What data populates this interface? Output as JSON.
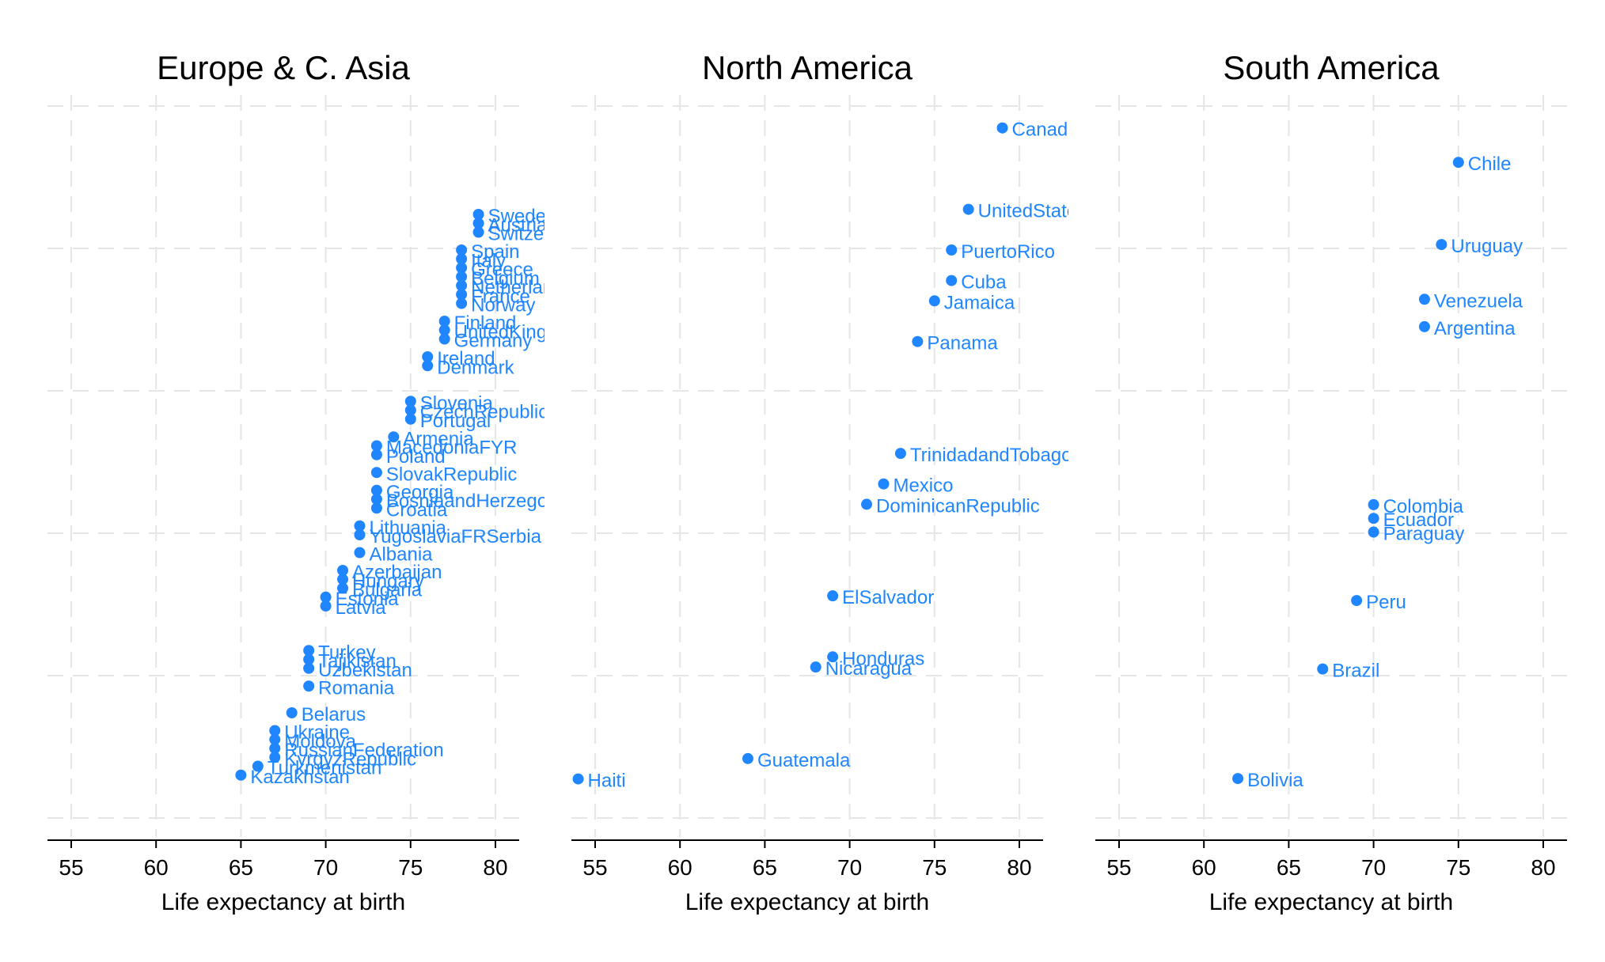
{
  "chart_data": [
    {
      "type": "scatter",
      "title": "Europe & C. Asia",
      "xlabel": "Life expectancy at birth",
      "xlim": [
        53,
        81
      ],
      "xticks": [
        55,
        60,
        65,
        70,
        75,
        80
      ],
      "grid": true,
      "color": "#1f86ff",
      "points": [
        {
          "label": "Sweden",
          "x": 79,
          "y": 46
        },
        {
          "label": "Austria",
          "x": 79,
          "y": 45
        },
        {
          "label": "Switzerland",
          "x": 79,
          "y": 44
        },
        {
          "label": "Spain",
          "x": 78,
          "y": 42
        },
        {
          "label": "Italy",
          "x": 78,
          "y": 41
        },
        {
          "label": "Greece",
          "x": 78,
          "y": 40
        },
        {
          "label": "Belgium",
          "x": 78,
          "y": 39
        },
        {
          "label": "Netherlands",
          "x": 78,
          "y": 38
        },
        {
          "label": "France",
          "x": 78,
          "y": 37
        },
        {
          "label": "Norway",
          "x": 78,
          "y": 36
        },
        {
          "label": "Finland",
          "x": 77,
          "y": 34
        },
        {
          "label": "UnitedKingdom",
          "x": 77,
          "y": 33
        },
        {
          "label": "Germany",
          "x": 77,
          "y": 32
        },
        {
          "label": "Ireland",
          "x": 76,
          "y": 30
        },
        {
          "label": "Denmark",
          "x": 76,
          "y": 29
        },
        {
          "label": "Slovenia",
          "x": 75,
          "y": 25
        },
        {
          "label": "CzechRepublic",
          "x": 75,
          "y": 24
        },
        {
          "label": "Portugal",
          "x": 75,
          "y": 23
        },
        {
          "label": "Armenia",
          "x": 74,
          "y": 21
        },
        {
          "label": "MacedoniaFYR",
          "x": 73,
          "y": 20
        },
        {
          "label": "Poland",
          "x": 73,
          "y": 19
        },
        {
          "label": "SlovakRepublic",
          "x": 73,
          "y": 17
        },
        {
          "label": "Georgia",
          "x": 73,
          "y": 15
        },
        {
          "label": "BosniaandHerzegovina",
          "x": 73,
          "y": 14
        },
        {
          "label": "Croatia",
          "x": 73,
          "y": 13
        },
        {
          "label": "Lithuania",
          "x": 72,
          "y": 11
        },
        {
          "label": "YugoslaviaFRSerbia",
          "x": 72,
          "y": 10
        },
        {
          "label": "Albania",
          "x": 72,
          "y": 8
        },
        {
          "label": "Azerbaijan",
          "x": 71,
          "y": 6
        },
        {
          "label": "Hungary",
          "x": 71,
          "y": 5
        },
        {
          "label": "Bulgaria",
          "x": 71,
          "y": 4
        },
        {
          "label": "Estonia",
          "x": 70,
          "y": 3
        },
        {
          "label": "Latvia",
          "x": 70,
          "y": 2
        },
        {
          "label": "Turkey",
          "x": 69,
          "y": -3
        },
        {
          "label": "Tajikistan",
          "x": 69,
          "y": -4
        },
        {
          "label": "Uzbekistan",
          "x": 69,
          "y": -5
        },
        {
          "label": "Romania",
          "x": 69,
          "y": -7
        },
        {
          "label": "Belarus",
          "x": 68,
          "y": -10
        },
        {
          "label": "Ukraine",
          "x": 67,
          "y": -12
        },
        {
          "label": "Moldova",
          "x": 67,
          "y": -13
        },
        {
          "label": "RussianFederation",
          "x": 67,
          "y": -14
        },
        {
          "label": "KyrgyzRepublic",
          "x": 67,
          "y": -15
        },
        {
          "label": "Turkmenistan",
          "x": 66,
          "y": -16
        },
        {
          "label": "Kazakhstan",
          "x": 65,
          "y": -17
        }
      ]
    },
    {
      "type": "scatter",
      "title": "North America",
      "xlabel": "Life expectancy at birth",
      "xlim": [
        53,
        81
      ],
      "xticks": [
        55,
        60,
        65,
        70,
        75,
        80
      ],
      "grid": true,
      "color": "#1f86ff",
      "points": [
        {
          "label": "Canada",
          "x": 79,
          "y": 30
        },
        {
          "label": "UnitedStates",
          "x": 77,
          "y": 26
        },
        {
          "label": "PuertoRico",
          "x": 76,
          "y": 24
        },
        {
          "label": "Cuba",
          "x": 76,
          "y": 22.5
        },
        {
          "label": "Jamaica",
          "x": 75,
          "y": 21.5
        },
        {
          "label": "Panama",
          "x": 74,
          "y": 19.5
        },
        {
          "label": "TrinidadandTobago",
          "x": 73,
          "y": 14
        },
        {
          "label": "Mexico",
          "x": 72,
          "y": 12.5
        },
        {
          "label": "DominicanRepublic",
          "x": 71,
          "y": 11.5
        },
        {
          "label": "ElSalvador",
          "x": 69,
          "y": 7
        },
        {
          "label": "Honduras",
          "x": 69,
          "y": 4
        },
        {
          "label": "Nicaragua",
          "x": 68,
          "y": 3.5
        },
        {
          "label": "Guatemala",
          "x": 64,
          "y": -1
        },
        {
          "label": "Haiti",
          "x": 54,
          "y": -2
        }
      ]
    },
    {
      "type": "scatter",
      "title": "South America",
      "xlabel": "Life expectancy at birth",
      "xlim": [
        53,
        81
      ],
      "xticks": [
        55,
        60,
        65,
        70,
        75,
        80
      ],
      "grid": true,
      "color": "#1f86ff",
      "points": [
        {
          "label": "Chile",
          "x": 75,
          "y": 20
        },
        {
          "label": "Uruguay",
          "x": 74,
          "y": 17
        },
        {
          "label": "Venezuela",
          "x": 73,
          "y": 15
        },
        {
          "label": "Argentina",
          "x": 73,
          "y": 14
        },
        {
          "label": "Colombia",
          "x": 70,
          "y": 7.5
        },
        {
          "label": "Ecuador",
          "x": 70,
          "y": 7
        },
        {
          "label": "Paraguay",
          "x": 70,
          "y": 6.5
        },
        {
          "label": "Peru",
          "x": 69,
          "y": 4
        },
        {
          "label": "Brazil",
          "x": 67,
          "y": 1.5
        },
        {
          "label": "Bolivia",
          "x": 62,
          "y": -2.5
        }
      ]
    }
  ]
}
